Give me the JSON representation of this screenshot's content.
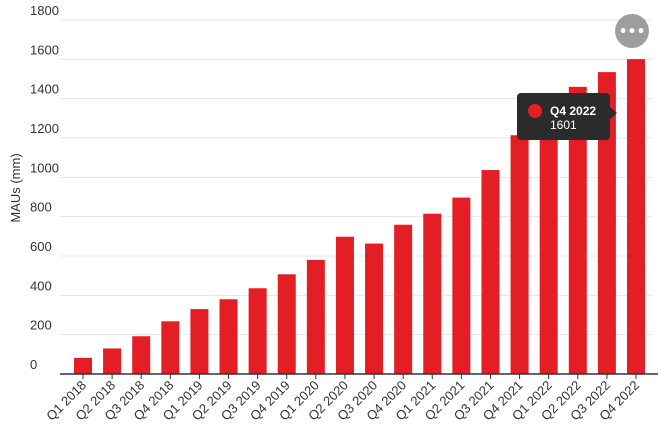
{
  "chart_data": {
    "type": "bar",
    "title": "",
    "xlabel": "",
    "ylabel": "MAUs (mm)",
    "ylim": [
      0,
      1800
    ],
    "yticks": [
      0,
      200,
      400,
      600,
      800,
      1000,
      1200,
      1400,
      1600,
      1800
    ],
    "grid": true,
    "legend": "none",
    "colors": {
      "bar": "#e31e24",
      "grid": "#e6e6e6",
      "axis": "#333333",
      "tooltip_bg": "#2b2b2b",
      "tooltip_marker": "#e31e24",
      "menu_button": "#9e9e9e"
    },
    "categories": [
      "Q1 2018",
      "Q2 2018",
      "Q3 2018",
      "Q4 2018",
      "Q1 2019",
      "Q2 2019",
      "Q3 2019",
      "Q4 2019",
      "Q1 2020",
      "Q2 2020",
      "Q3 2020",
      "Q4 2020",
      "Q1 2021",
      "Q2 2021",
      "Q3 2021",
      "Q4 2021",
      "Q1 2022",
      "Q2 2022",
      "Q3 2022",
      "Q4 2022"
    ],
    "values": [
      82,
      130,
      192,
      268,
      330,
      380,
      436,
      507,
      580,
      698,
      663,
      759,
      815,
      897,
      1037,
      1214,
      1307,
      1460,
      1535,
      1601
    ],
    "tooltip": {
      "category": "Q4 2022",
      "value": "1601"
    },
    "menu_icon": "more-horizontal-icon",
    "menu_glyph": "•••"
  }
}
